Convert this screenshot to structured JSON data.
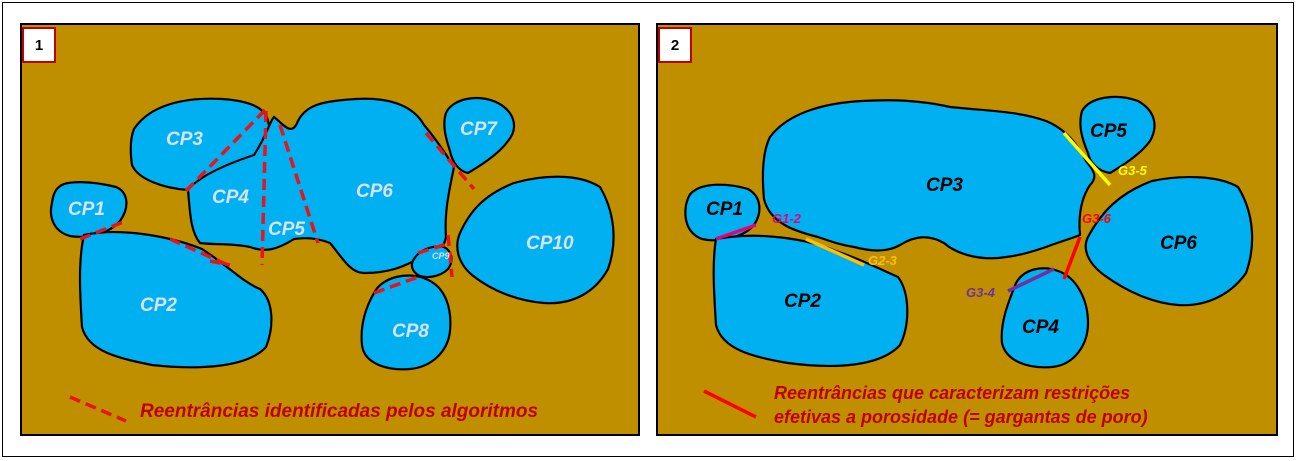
{
  "panel1": {
    "number": "1",
    "pores": [
      "CP1",
      "CP2",
      "CP3",
      "CP4",
      "CP5",
      "CP6",
      "CP7",
      "CP8",
      "CP9",
      "CP10"
    ],
    "legend": "Reentrâncias identificadas pelos algoritmos"
  },
  "panel2": {
    "number": "2",
    "pores": [
      "CP1",
      "CP2",
      "CP3",
      "CP4",
      "CP5",
      "CP6"
    ],
    "throats": [
      {
        "label": "G1-2",
        "color": "#e6007e"
      },
      {
        "label": "G2-3",
        "color": "#ffc000"
      },
      {
        "label": "G3-5",
        "color": "#ffff00"
      },
      {
        "label": "G3-6",
        "color": "#ff0000"
      },
      {
        "label": "G3-4",
        "color": "#7030a0"
      }
    ],
    "legend_line1": "Reentrâncias  que caracterizam restrições",
    "legend_line2": "efetivas a porosidade (= gargantas de poro)"
  },
  "colors": {
    "matrix": "#bf8f00",
    "pore": "#00b0f0",
    "dashed_line": "#e8131b",
    "legend_text": "#c00000"
  }
}
